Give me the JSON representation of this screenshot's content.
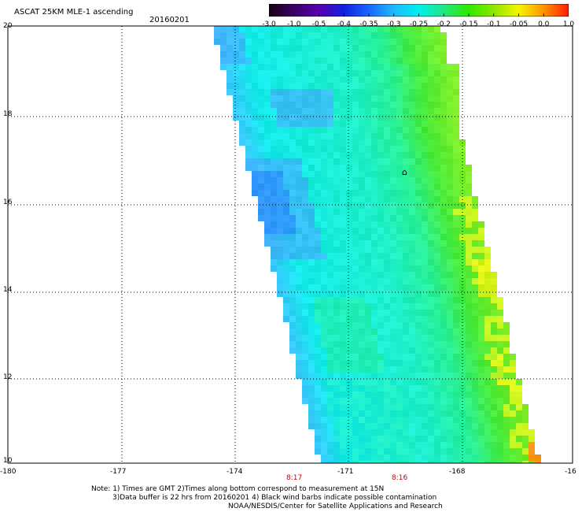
{
  "header": {
    "title": "ASCAT 25KM MLE-1 ascending",
    "date": "20160201"
  },
  "colorbar": {
    "ticks": [
      "-3.0",
      "-1.0",
      "-0.5",
      "-0.4",
      "-0.35",
      "-0.3",
      "-0.25",
      "-0.2",
      "-0.15",
      "-0.1",
      "-0.05",
      "0.0",
      "1.0"
    ],
    "colors": [
      "#1a0010",
      "#3a0066",
      "#5a00b0",
      "#1020e0",
      "#1a66ff",
      "#20b8ff",
      "#00f0ee",
      "#20e880",
      "#30e800",
      "#8ee800",
      "#f5f500",
      "#ff9400",
      "#ff1a00"
    ]
  },
  "map": {
    "lat_labels": [
      "20",
      "18",
      "16",
      "14",
      "12",
      "10"
    ],
    "lon_labels": [
      "-180",
      "-177",
      "-174",
      "-171",
      "-168",
      "-16"
    ],
    "time_labels": [
      "8:17",
      "8:16"
    ],
    "wind_barb_symbol": "⌂"
  },
  "notes": {
    "line1": "Note: 1) Times are GMT 2)Times along bottom correspond to measurement at 15N",
    "line2": "3)Data buffer is 22 hrs from 20160201 4) Black wind barbs indicate possible contamination",
    "line3": "NOAA/NESDIS/Center for Satellite Applications and Research"
  }
}
